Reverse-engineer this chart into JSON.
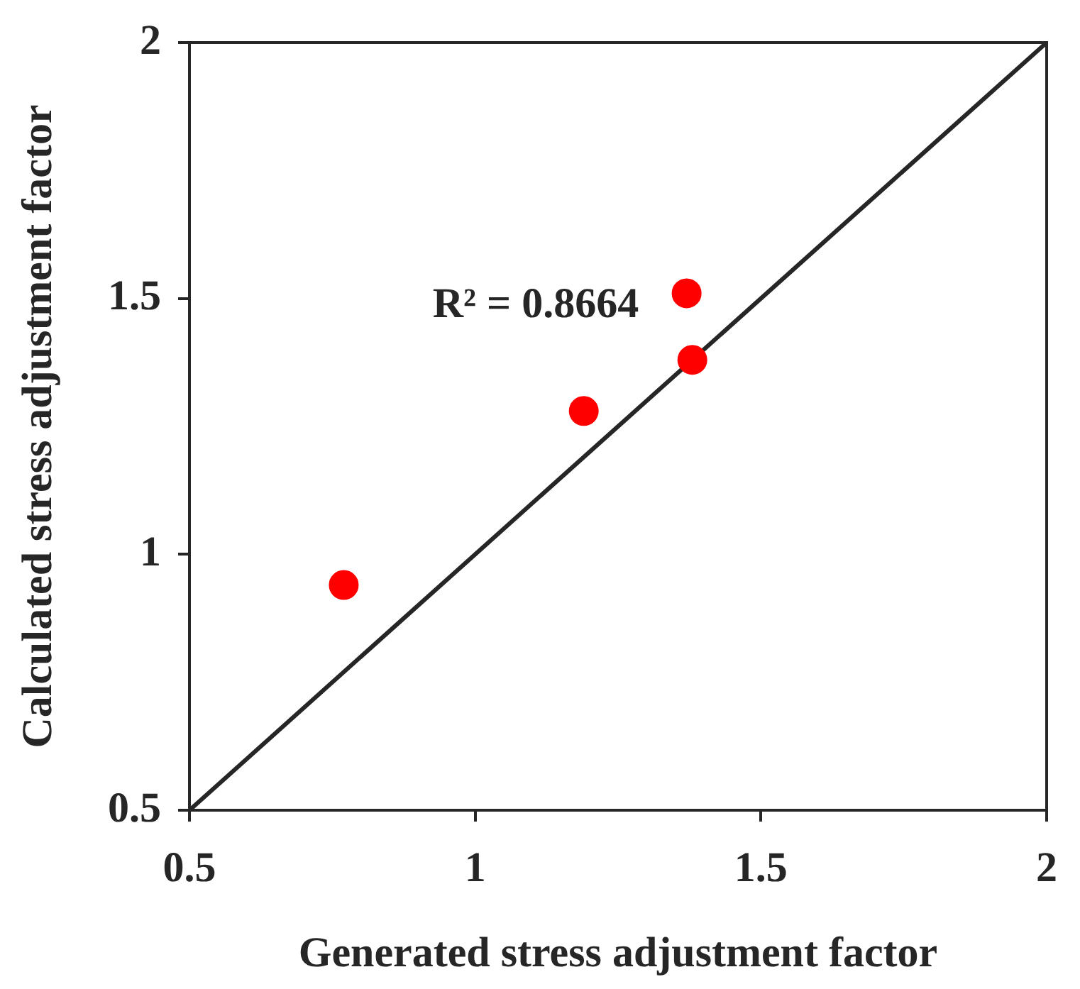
{
  "chart_data": {
    "type": "scatter",
    "xlabel": "Generated stress adjustment factor",
    "ylabel": "Calculated stress adjustment factor",
    "xlim": [
      0.5,
      2
    ],
    "ylim": [
      0.5,
      2
    ],
    "xticks": [
      0.5,
      1,
      1.5,
      2
    ],
    "yticks": [
      0.5,
      1,
      1.5,
      2
    ],
    "marker": "circle",
    "annotations": [
      "R² = 0.8664"
    ],
    "series": [
      {
        "color": "#ff0000",
        "x": [
          0.77,
          1.19,
          1.37,
          1.38
        ],
        "values": [
          0.94,
          1.28,
          1.51,
          1.38
        ]
      },
      {
        "type": "line",
        "color": "#262626",
        "x": [
          0.5,
          2
        ],
        "values": [
          0.5,
          2
        ],
        "marker": "none",
        "line_style": "solid"
      }
    ]
  }
}
